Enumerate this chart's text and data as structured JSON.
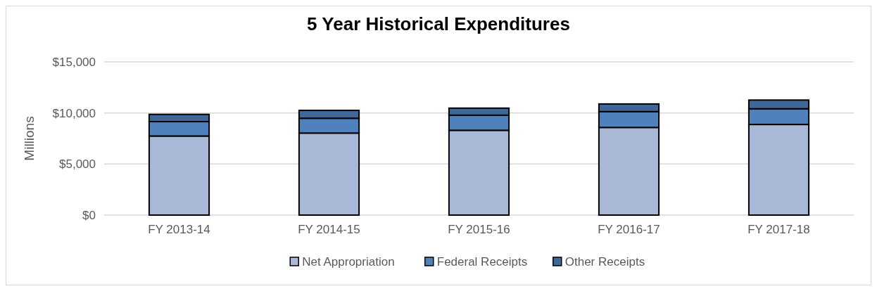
{
  "chart_data": {
    "type": "bar",
    "title": "5 Year Historical Expenditures",
    "ylabel": "Millions",
    "categories": [
      "FY 2013-14",
      "FY 2014-15",
      "FY 2015-16",
      "FY 2016-17",
      "FY 2017-18"
    ],
    "stacked": true,
    "series": [
      {
        "name": "Net Appropriation",
        "color": "#a9b8d6",
        "values": [
          7740,
          8030,
          8300,
          8580,
          8870
        ]
      },
      {
        "name": "Federal Receipts",
        "color": "#4f81bd",
        "values": [
          1410,
          1450,
          1480,
          1550,
          1540
        ]
      },
      {
        "name": "Other Receipts",
        "color": "#3f6797",
        "values": [
          710,
          770,
          690,
          750,
          850
        ]
      }
    ],
    "ylim": [
      0,
      15000
    ],
    "yticks": [
      {
        "value": 0,
        "label": "$0"
      },
      {
        "value": 5000,
        "label": "$5,000"
      },
      {
        "value": 10000,
        "label": "$10,000"
      },
      {
        "value": 15000,
        "label": "$15,000"
      }
    ],
    "grid": "y",
    "legend": "bottom"
  }
}
